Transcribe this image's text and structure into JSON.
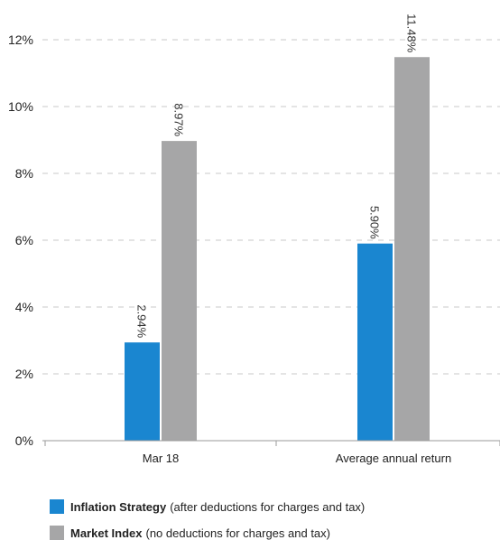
{
  "chart_data": {
    "type": "bar",
    "categories": [
      "Mar 18",
      "Average annual return"
    ],
    "series": [
      {
        "name": "Inflation Strategy",
        "values": [
          2.94,
          5.9
        ],
        "labels": [
          "2.94%",
          "5.90%"
        ],
        "color": "#1a86d0"
      },
      {
        "name": "Market Index",
        "values": [
          8.97,
          11.48
        ],
        "labels": [
          "8.97%",
          "11.48%"
        ],
        "color": "#a6a6a7"
      }
    ],
    "y_ticks": [
      "0%",
      "2%",
      "4%",
      "6%",
      "8%",
      "10%",
      "12%"
    ],
    "y_tick_values": [
      0,
      2,
      4,
      6,
      8,
      10,
      12
    ],
    "ylim": [
      0,
      12
    ],
    "grid": true,
    "legend_position": "bottom-left"
  },
  "legend": [
    {
      "name": "Inflation Strategy",
      "note": "(after deductions for charges and tax)",
      "color": "#1a86d0"
    },
    {
      "name": "Market Index",
      "note": "(no deductions for charges and tax)",
      "color": "#a6a6a7"
    }
  ],
  "colors": {
    "grid": "#c8c8c8",
    "axis": "#9a9a9a"
  }
}
